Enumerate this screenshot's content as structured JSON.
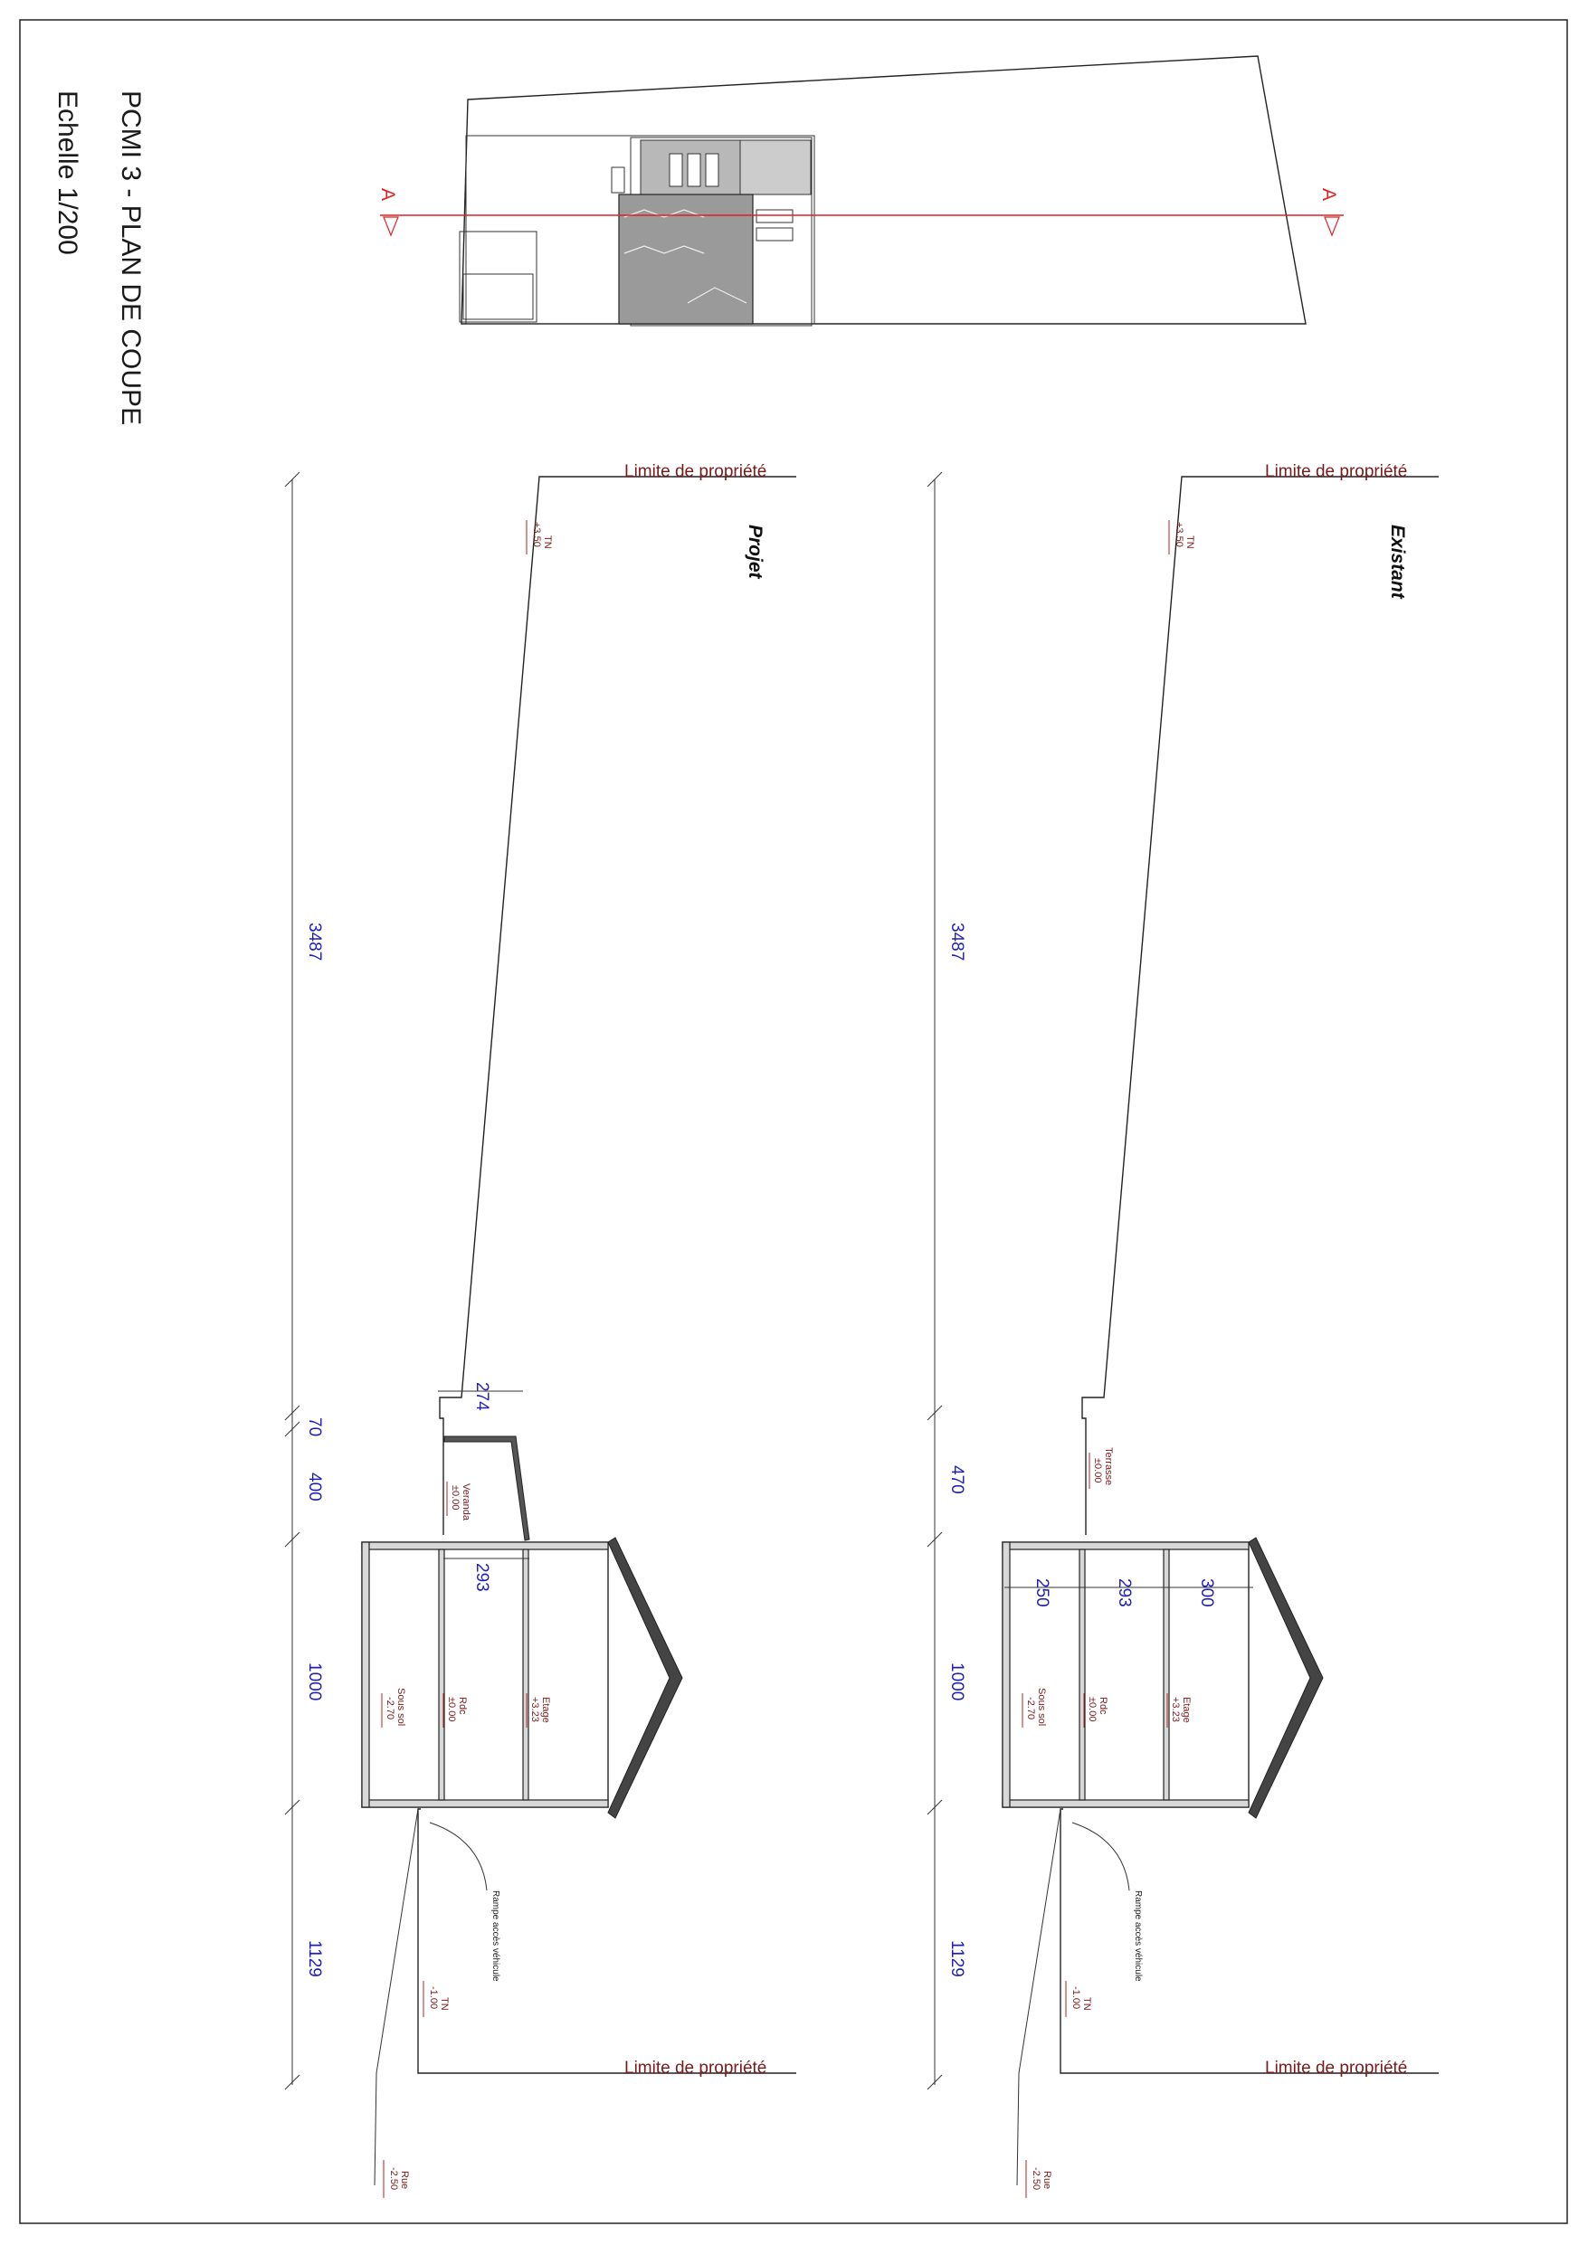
{
  "title": {
    "heading": "PCMI 3 - PLAN DE COUPE",
    "scale": "Echelle 1/200"
  },
  "site_plan": {
    "section_marker_left": "A",
    "section_marker_right": "A",
    "line_color": "#e02020"
  },
  "views": [
    {
      "name": "Projet",
      "property_limit_top": "Limite de propriété",
      "property_limit_bottom": "Limite de propriété",
      "levels": {
        "tn_top": {
          "label": "TN",
          "value": "+3.50"
        },
        "veranda": {
          "label": "Veranda",
          "value": "±0.00"
        },
        "etage": {
          "label": "Etage",
          "value": "+3.23"
        },
        "rdc": {
          "label": "Rdc",
          "value": "±0.00"
        },
        "sous_sol": {
          "label": "Sous sol",
          "value": "-2.70"
        },
        "tn_bottom": {
          "label": "TN",
          "value": "-1.00"
        },
        "rue": {
          "label": "Rue",
          "value": "-2.50"
        }
      },
      "ramp_note": "Rampe accès véhicule",
      "dims_overall": [
        "3487",
        "70",
        "400",
        "1000",
        "1129"
      ],
      "dims_local": [
        "274",
        "293"
      ]
    },
    {
      "name": "Existant",
      "property_limit_top": "Limite de propriété",
      "property_limit_bottom": "Limite de propriété",
      "levels": {
        "tn_top": {
          "label": "TN",
          "value": "+3.50"
        },
        "terrasse": {
          "label": "Terrasse",
          "value": "±0.00"
        },
        "etage": {
          "label": "Etage",
          "value": "+3.23"
        },
        "rdc": {
          "label": "Rdc",
          "value": "±0.00"
        },
        "sous_sol": {
          "label": "Sous sol",
          "value": "-2.70"
        },
        "tn_bottom": {
          "label": "TN",
          "value": "-1.00"
        },
        "rue": {
          "label": "Rue",
          "value": "-2.50"
        }
      },
      "ramp_note": "Rampe accès véhicule",
      "dims_overall": [
        "3487",
        "470",
        "1000",
        "1129"
      ],
      "dims_local": [
        "250",
        "293",
        "300"
      ]
    }
  ]
}
